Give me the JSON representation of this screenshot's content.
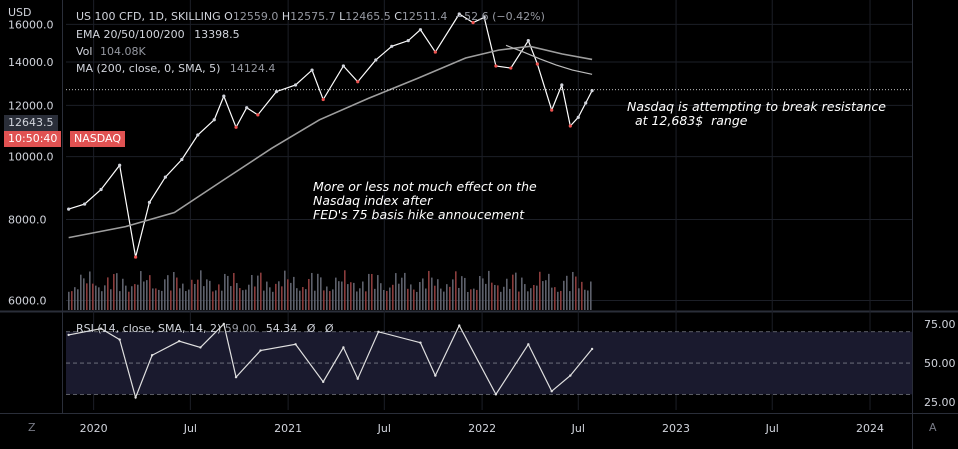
{
  "header": {
    "currency": "USD",
    "symbol_line": "US 100 CFD, 1D, SKILLING",
    "ohlc": [
      {
        "key": "O",
        "value": "12559.0"
      },
      {
        "key": "H",
        "value": "12575.7"
      },
      {
        "key": "L",
        "value": "12465.5"
      },
      {
        "key": "C",
        "value": "12511.4"
      }
    ],
    "change": "−52.6 (−0.42%)",
    "ema_label": "EMA 20/50/100/200",
    "ema_value": "13398.5",
    "vol_label": "Vol",
    "vol_value": "104.08K",
    "ma_label": "MA (200, close, 0, SMA, 5)",
    "ma_value": "14124.4"
  },
  "price_tags": {
    "last_price": "12643.5",
    "countdown": "10:50:40",
    "symbol": "NASDAQ"
  },
  "annotations": {
    "resistance": "Nasdaq is attempting to break resistance\n  at 12,683$  range",
    "fed": "More or less not much effect on the\nNasdaq index after\nFED's 75 basis hike annoucement"
  },
  "rsi": {
    "label": "RSI (14, close, SMA, 14, 2)",
    "values": [
      "59.00",
      "54.34",
      "Ø",
      "Ø"
    ]
  },
  "bottom": {
    "left_button": "Z",
    "right_button": "A"
  },
  "colors": {
    "background": "#000000",
    "up": "#d1d4dc",
    "down": "#ef5350",
    "price_line": "#ffffff",
    "ma": "#9e9e9e",
    "tag_red": "#e05252"
  },
  "chart_data": [
    {
      "type": "line",
      "name": "price",
      "scale": "log",
      "ylim": [
        5800,
        17200
      ],
      "y_ticks": [
        "16000.0",
        "14000.0",
        "12000.0",
        "10000.0",
        "8000.0",
        "6000.0"
      ],
      "y_tick_values": [
        16000,
        14000,
        12000,
        10000,
        8000,
        6000
      ],
      "x_ticks": [
        "2020",
        "Jul",
        "2021",
        "Jul",
        "2022",
        "Jul",
        "2023",
        "Jul",
        "2024"
      ],
      "x_tick_dates": [
        "2020-01-01",
        "2020-07-01",
        "2021-01-01",
        "2021-07-01",
        "2022-01-01",
        "2022-07-01",
        "2023-01-01",
        "2023-07-01",
        "2024-01-01"
      ],
      "x_range": [
        "2019-11-10",
        "2024-03-20"
      ],
      "series": [
        {
          "x": [
            "2019-11-15",
            "2019-12-15",
            "2020-01-15",
            "2020-02-19",
            "2020-03-20",
            "2020-04-15",
            "2020-05-15",
            "2020-06-15",
            "2020-07-15",
            "2020-08-15",
            "2020-09-02",
            "2020-09-25",
            "2020-10-15",
            "2020-11-05",
            "2020-12-10",
            "2021-01-15",
            "2021-02-15",
            "2021-03-08",
            "2021-04-15",
            "2021-05-12",
            "2021-06-15",
            "2021-07-15",
            "2021-08-15",
            "2021-09-07",
            "2021-10-05",
            "2021-11-19",
            "2021-12-15",
            "2022-01-05",
            "2022-01-27",
            "2022-02-24",
            "2022-03-29",
            "2022-04-15",
            "2022-05-12",
            "2022-05-31",
            "2022-06-16",
            "2022-07-01",
            "2022-07-15",
            "2022-07-27"
          ],
          "values": [
            8300,
            8450,
            8900,
            9700,
            7000,
            8500,
            9300,
            9900,
            10800,
            11400,
            12400,
            11100,
            11900,
            11600,
            12600,
            12900,
            13600,
            12250,
            13800,
            13050,
            14100,
            14800,
            15100,
            15700,
            14500,
            16600,
            16100,
            16400,
            13800,
            13700,
            15100,
            13900,
            11800,
            12900,
            11150,
            11500,
            12100,
            12643.5
          ]
        }
      ],
      "ma_x": [
        "2019-11-15",
        "2020-03-01",
        "2020-06-01",
        "2020-09-01",
        "2020-12-01",
        "2021-03-01",
        "2021-06-01",
        "2021-09-01",
        "2021-12-01",
        "2022-02-01",
        "2022-04-01",
        "2022-06-01",
        "2022-07-27"
      ],
      "ma_values": [
        7500,
        7800,
        8200,
        9200,
        10300,
        11400,
        12300,
        13200,
        14200,
        14600,
        14800,
        14400,
        14124.4
      ],
      "ema_x": [
        "2022-02-15",
        "2022-03-20",
        "2022-04-20",
        "2022-05-20",
        "2022-06-20",
        "2022-07-27"
      ],
      "ema_values": [
        14850,
        14500,
        14150,
        13850,
        13600,
        13398.5
      ],
      "resistance_level": 12683
    },
    {
      "type": "line",
      "name": "RSI",
      "ylim": [
        20,
        82
      ],
      "y_ticks": [
        "75.00",
        "50.00",
        "25.00"
      ],
      "y_tick_values": [
        75,
        50,
        25
      ],
      "bands": [
        70,
        50,
        30
      ],
      "x": [
        "2019-11-15",
        "2020-01-15",
        "2020-02-19",
        "2020-03-20",
        "2020-04-20",
        "2020-06-10",
        "2020-07-20",
        "2020-09-02",
        "2020-09-25",
        "2020-11-10",
        "2021-01-15",
        "2021-03-08",
        "2021-04-15",
        "2021-05-12",
        "2021-06-20",
        "2021-09-07",
        "2021-10-05",
        "2021-11-19",
        "2022-01-27",
        "2022-03-29",
        "2022-05-12",
        "2022-06-16",
        "2022-07-27"
      ],
      "values": [
        68,
        72,
        65,
        28,
        55,
        64,
        60,
        75,
        41,
        58,
        62,
        38,
        60,
        40,
        70,
        63,
        42,
        74,
        30,
        62,
        32,
        42,
        59
      ]
    }
  ]
}
